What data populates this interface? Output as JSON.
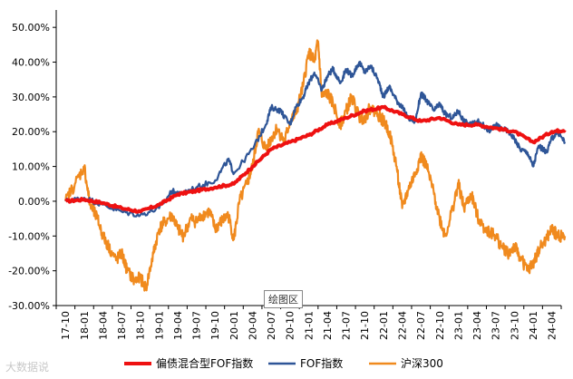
{
  "tooltip_label": "绘图区",
  "watermark": "大数据说",
  "chart_data": {
    "type": "line",
    "title": "",
    "xlabel": "",
    "ylabel": "",
    "ylim": [
      -30,
      55
    ],
    "yticks": [
      -30,
      -20,
      -10,
      0,
      10,
      20,
      30,
      40,
      50
    ],
    "ytick_labels": [
      "-30.00%",
      "-20.00%",
      "-10.00%",
      "0.00%",
      "10.00%",
      "20.00%",
      "30.00%",
      "40.00%",
      "50.00%"
    ],
    "x_tick_labels": [
      "17-10",
      "18-01",
      "18-04",
      "18-07",
      "18-10",
      "19-01",
      "19-04",
      "19-07",
      "19-10",
      "20-01",
      "20-04",
      "20-07",
      "20-10",
      "21-01",
      "21-04",
      "21-07",
      "21-10",
      "22-01",
      "22-04",
      "22-07",
      "22-10",
      "23-01",
      "23-04",
      "23-07",
      "23-10",
      "24-01",
      "24-04"
    ],
    "legend": [
      "偏债混合型FOF指数",
      "FOF指数",
      "沪深300"
    ],
    "legend_position": "bottom",
    "series": [
      {
        "name": "偏债混合型FOF指数",
        "color": "#ee1111",
        "x": [
          0,
          1,
          2,
          3,
          4,
          5,
          6,
          7,
          8,
          9,
          10,
          11,
          12,
          13,
          14,
          15,
          16,
          17,
          18,
          19,
          20,
          21,
          22,
          23,
          24,
          25,
          26,
          26.7
        ],
        "values": [
          0,
          0.5,
          -0.5,
          -2,
          -3,
          -1,
          2,
          3,
          4,
          5,
          10,
          15,
          17,
          19,
          22,
          24,
          26,
          27,
          25,
          23,
          24,
          22,
          22,
          21,
          20,
          17,
          20,
          20.5
        ]
      },
      {
        "name": "FOF指数",
        "color": "#2e5597",
        "x": [
          0,
          1,
          2,
          3,
          4,
          5,
          5.7,
          6,
          7,
          8,
          8.7,
          9,
          10,
          10.7,
          11,
          11.5,
          12,
          12.3,
          12.7,
          13,
          13.3,
          13.7,
          14,
          14.3,
          14.7,
          15,
          15.3,
          15.7,
          16,
          16.3,
          16.7,
          17,
          17.3,
          17.7,
          18,
          18.3,
          18.7,
          19,
          19.3,
          19.7,
          20,
          20.3,
          20.7,
          21,
          21.3,
          21.7,
          22,
          22.3,
          22.7,
          23,
          23.3,
          23.7,
          24,
          24.3,
          24.7,
          25,
          25.3,
          25.7,
          26,
          26.3,
          26.7
        ],
        "values": [
          0,
          1,
          -1,
          -3,
          -4,
          -2,
          3,
          2,
          4,
          6,
          12,
          8,
          15,
          22,
          27,
          26,
          22,
          27,
          30,
          34,
          37,
          32,
          36,
          38,
          34,
          38,
          36,
          40,
          37,
          39,
          35,
          30,
          33,
          29,
          27,
          24,
          23,
          31,
          29,
          26,
          28,
          25,
          24,
          26,
          23,
          22,
          23,
          22,
          20,
          22,
          21,
          20,
          18,
          15,
          14,
          10,
          16,
          14,
          18,
          20,
          17
        ]
      },
      {
        "name": "沪深300",
        "color": "#f08a1e",
        "x": [
          0,
          0.5,
          1,
          1.3,
          1.7,
          2,
          2.3,
          2.7,
          3,
          3.3,
          3.7,
          4,
          4.3,
          4.7,
          5,
          5.3,
          5.7,
          6,
          6.3,
          6.7,
          7,
          7.3,
          7.7,
          8,
          8.3,
          8.7,
          9,
          9.3,
          9.7,
          10,
          10.3,
          10.7,
          11,
          11.3,
          11.7,
          12,
          12.3,
          12.7,
          13,
          13.3,
          13.5,
          13.7,
          14,
          14.3,
          14.7,
          15,
          15.3,
          15.7,
          16,
          16.3,
          16.7,
          17,
          17.3,
          17.7,
          18,
          18.3,
          18.7,
          19,
          19.3,
          19.7,
          20,
          20.3,
          20.7,
          21,
          21.3,
          21.7,
          22,
          22.3,
          22.7,
          23,
          23.3,
          23.7,
          24,
          24.3,
          24.7,
          25,
          25.3,
          25.7,
          26,
          26.3,
          26.7
        ],
        "values": [
          0,
          5,
          10,
          -1,
          -5,
          -10,
          -13,
          -17,
          -15,
          -20,
          -23,
          -22,
          -25,
          -15,
          -8,
          -6,
          -4,
          -8,
          -10,
          -5,
          -6,
          -4,
          -3,
          -8,
          -6,
          -4,
          -11,
          0,
          5,
          10,
          20,
          15,
          18,
          21,
          17,
          23,
          25,
          33,
          43,
          40,
          46,
          30,
          31,
          28,
          22,
          26,
          30,
          24,
          24,
          27,
          25,
          23,
          20,
          10,
          -2,
          3,
          8,
          13,
          10,
          2,
          -5,
          -10,
          -2,
          5,
          -2,
          2,
          -4,
          -7,
          -9,
          -10,
          -13,
          -15,
          -13,
          -16,
          -20,
          -18,
          -14,
          -11,
          -8,
          -10,
          -10
        ]
      }
    ]
  }
}
